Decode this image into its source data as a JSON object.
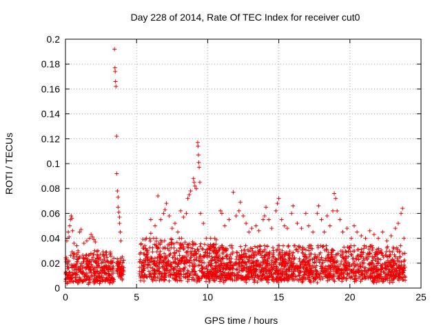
{
  "chart_data": {
    "type": "scatter",
    "title": "Day 228 of 2014, Rate Of TEC Index for receiver cut0",
    "xlabel": "GPS time / hours",
    "ylabel": "ROTI / TECUs",
    "xlim": [
      0,
      25
    ],
    "ylim": [
      0,
      0.2
    ],
    "xticks": [
      0,
      5,
      10,
      15,
      20,
      25
    ],
    "yticks": [
      0,
      0.02,
      0.04,
      0.06,
      0.08,
      0.1,
      0.12,
      0.14,
      0.16,
      0.18,
      0.2
    ],
    "grid": true,
    "legend": "none",
    "marker": "+",
    "color": "#ee0000",
    "points": [
      [
        0.1,
        0.038
      ],
      [
        0.2,
        0.045
      ],
      [
        0.25,
        0.041
      ],
      [
        0.3,
        0.05
      ],
      [
        0.35,
        0.055
      ],
      [
        0.4,
        0.058
      ],
      [
        0.45,
        0.056
      ],
      [
        0.5,
        0.046
      ],
      [
        0.6,
        0.036
      ],
      [
        0.8,
        0.034
      ],
      [
        1.0,
        0.045
      ],
      [
        1.1,
        0.047
      ],
      [
        1.3,
        0.036
      ],
      [
        1.5,
        0.038
      ],
      [
        1.7,
        0.04
      ],
      [
        1.8,
        0.043
      ],
      [
        1.9,
        0.041
      ],
      [
        2.0,
        0.039
      ],
      [
        2.1,
        0.037
      ],
      [
        2.3,
        0.018
      ],
      [
        2.6,
        0.016
      ],
      [
        2.9,
        0.017
      ],
      [
        3.2,
        0.02
      ],
      [
        3.4,
        0.024
      ],
      [
        3.45,
        0.192
      ],
      [
        3.48,
        0.177
      ],
      [
        3.5,
        0.174
      ],
      [
        3.52,
        0.166
      ],
      [
        3.55,
        0.162
      ],
      [
        3.6,
        0.122
      ],
      [
        3.6,
        0.092
      ],
      [
        3.65,
        0.078
      ],
      [
        3.7,
        0.073
      ],
      [
        3.7,
        0.065
      ],
      [
        3.75,
        0.061
      ],
      [
        3.8,
        0.057
      ],
      [
        3.8,
        0.052
      ],
      [
        3.85,
        0.045
      ],
      [
        3.9,
        0.038
      ],
      [
        4.0,
        0.025
      ],
      [
        5.3,
        0.035
      ],
      [
        5.5,
        0.032
      ],
      [
        5.8,
        0.03
      ],
      [
        6.0,
        0.044
      ],
      [
        6.0,
        0.055
      ],
      [
        6.2,
        0.04
      ],
      [
        6.3,
        0.05
      ],
      [
        6.5,
        0.074
      ],
      [
        6.7,
        0.055
      ],
      [
        6.9,
        0.06
      ],
      [
        7.0,
        0.063
      ],
      [
        7.1,
        0.068
      ],
      [
        7.3,
        0.058
      ],
      [
        7.5,
        0.048
      ],
      [
        7.7,
        0.052
      ],
      [
        7.9,
        0.045
      ],
      [
        8.1,
        0.062
      ],
      [
        8.3,
        0.057
      ],
      [
        8.5,
        0.06
      ],
      [
        8.6,
        0.072
      ],
      [
        8.7,
        0.075
      ],
      [
        8.8,
        0.078
      ],
      [
        9.0,
        0.088
      ],
      [
        9.05,
        0.085
      ],
      [
        9.1,
        0.082
      ],
      [
        9.2,
        0.08
      ],
      [
        9.3,
        0.117
      ],
      [
        9.32,
        0.114
      ],
      [
        9.35,
        0.107
      ],
      [
        9.37,
        0.101
      ],
      [
        9.4,
        0.097
      ],
      [
        9.45,
        0.085
      ],
      [
        9.5,
        0.06
      ],
      [
        9.7,
        0.052
      ],
      [
        9.9,
        0.04
      ],
      [
        10.2,
        0.035
      ],
      [
        10.5,
        0.04
      ],
      [
        10.9,
        0.062
      ],
      [
        11.0,
        0.06
      ],
      [
        11.2,
        0.05
      ],
      [
        11.5,
        0.055
      ],
      [
        11.8,
        0.077
      ],
      [
        12.0,
        0.058
      ],
      [
        12.2,
        0.062
      ],
      [
        12.3,
        0.069
      ],
      [
        12.5,
        0.058
      ],
      [
        12.7,
        0.052
      ],
      [
        12.9,
        0.045
      ],
      [
        13.1,
        0.048
      ],
      [
        13.4,
        0.05
      ],
      [
        13.6,
        0.046
      ],
      [
        13.9,
        0.055
      ],
      [
        14.0,
        0.058
      ],
      [
        14.1,
        0.065
      ],
      [
        14.3,
        0.055
      ],
      [
        14.5,
        0.048
      ],
      [
        14.8,
        0.062
      ],
      [
        14.9,
        0.068
      ],
      [
        15.0,
        0.072
      ],
      [
        15.2,
        0.055
      ],
      [
        15.4,
        0.05
      ],
      [
        15.6,
        0.048
      ],
      [
        15.9,
        0.06
      ],
      [
        16.0,
        0.066
      ],
      [
        16.3,
        0.052
      ],
      [
        16.6,
        0.048
      ],
      [
        16.9,
        0.06
      ],
      [
        17.1,
        0.05
      ],
      [
        17.4,
        0.045
      ],
      [
        17.7,
        0.06
      ],
      [
        17.8,
        0.066
      ],
      [
        18.0,
        0.055
      ],
      [
        18.2,
        0.045
      ],
      [
        18.4,
        0.058
      ],
      [
        18.6,
        0.05
      ],
      [
        18.8,
        0.062
      ],
      [
        18.9,
        0.076
      ],
      [
        19.0,
        0.072
      ],
      [
        19.1,
        0.062
      ],
      [
        19.3,
        0.055
      ],
      [
        19.5,
        0.045
      ],
      [
        19.8,
        0.048
      ],
      [
        20.1,
        0.04
      ],
      [
        20.3,
        0.05
      ],
      [
        20.5,
        0.045
      ],
      [
        20.8,
        0.042
      ],
      [
        21.1,
        0.04
      ],
      [
        21.4,
        0.046
      ],
      [
        21.7,
        0.043
      ],
      [
        22.0,
        0.04
      ],
      [
        22.3,
        0.045
      ],
      [
        22.6,
        0.038
      ],
      [
        22.9,
        0.042
      ],
      [
        23.2,
        0.048
      ],
      [
        23.4,
        0.052
      ],
      [
        23.6,
        0.06
      ],
      [
        23.7,
        0.064
      ],
      [
        23.8,
        0.04
      ]
    ],
    "band_segments": [
      {
        "x": [
          0.0,
          3.4
        ],
        "y": [
          0.003,
          0.03
        ]
      },
      {
        "x": [
          3.6,
          4.1
        ],
        "y": [
          0.006,
          0.024
        ]
      },
      {
        "x": [
          5.2,
          10.8
        ],
        "y": [
          0.004,
          0.04
        ]
      },
      {
        "x": [
          10.8,
          23.9
        ],
        "y": [
          0.004,
          0.034
        ]
      }
    ]
  }
}
